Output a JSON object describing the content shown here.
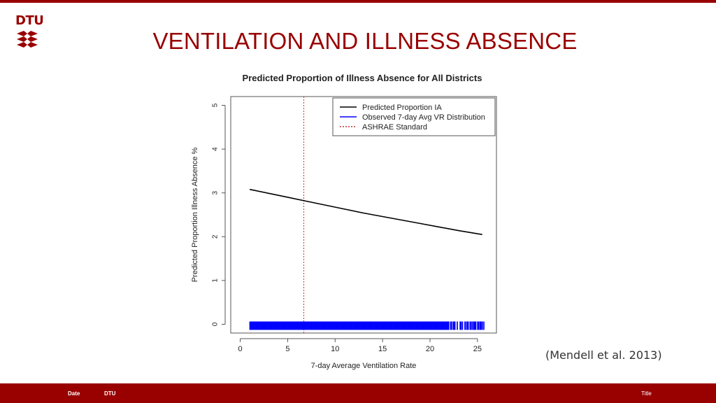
{
  "slide": {
    "logo_text": "DTU",
    "title": "VENTILATION AND ILLNESS ABSENCE",
    "citation": "(Mendell et al. 2013)",
    "accent_color": "#990000"
  },
  "footer": {
    "date": "Date",
    "org": "DTU",
    "title": "Title"
  },
  "chart_data": {
    "type": "line",
    "title": "Predicted Proportion of Illness Absence for All Districts",
    "xlabel": "7-day Average Ventilation Rate",
    "ylabel": "Predicted Proportion Illness Absence %",
    "xlim": [
      -1,
      27
    ],
    "ylim": [
      -0.2,
      5.2
    ],
    "xticks": [
      0,
      5,
      10,
      15,
      20,
      25
    ],
    "yticks": [
      0,
      1,
      2,
      3,
      4,
      5
    ],
    "legend_position": "top-right",
    "series": [
      {
        "name": "Predicted Proportion IA",
        "color": "#000000",
        "style": "solid",
        "x": [
          1,
          3,
          5,
          7,
          9,
          11,
          13,
          15,
          17,
          19,
          21,
          23,
          25.5
        ],
        "y": [
          3.08,
          2.99,
          2.9,
          2.81,
          2.72,
          2.63,
          2.54,
          2.46,
          2.38,
          2.3,
          2.22,
          2.14,
          2.05
        ]
      },
      {
        "name": "Observed 7-day Avg VR Distribution",
        "color": "#0000ff",
        "style": "rug",
        "x_range": [
          1,
          25.8
        ],
        "y": 0
      },
      {
        "name": "ASHRAE Standard",
        "color": "#cc3333",
        "style": "dotted",
        "x": 6.7
      }
    ]
  }
}
